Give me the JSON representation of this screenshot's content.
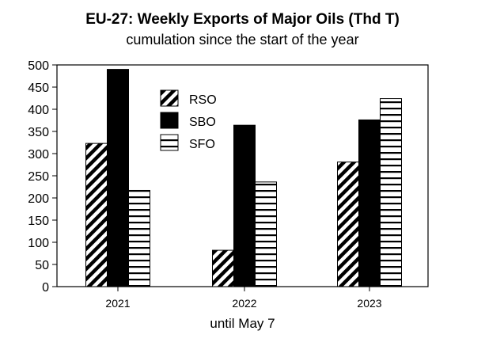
{
  "chart_data": {
    "type": "bar",
    "title": "EU-27: Weekly Exports of Major Oils (Thd T)",
    "subtitle": "cumulation since the start of the year",
    "xlabel": "until May 7",
    "ylabel": "",
    "ylim": [
      0,
      500
    ],
    "yticks": [
      0,
      50,
      100,
      150,
      200,
      250,
      300,
      350,
      400,
      450,
      500
    ],
    "grid": false,
    "legend_position": "top-center",
    "categories": [
      "2021",
      "2022",
      "2023"
    ],
    "series": [
      {
        "name": "RSO",
        "values": [
          323,
          82,
          281
        ],
        "pattern": "diagonal-stripes"
      },
      {
        "name": "SBO",
        "values": [
          490,
          364,
          376
        ],
        "pattern": "solid-black"
      },
      {
        "name": "SFO",
        "values": [
          217,
          236,
          424
        ],
        "pattern": "horizontal-stripes"
      }
    ]
  }
}
